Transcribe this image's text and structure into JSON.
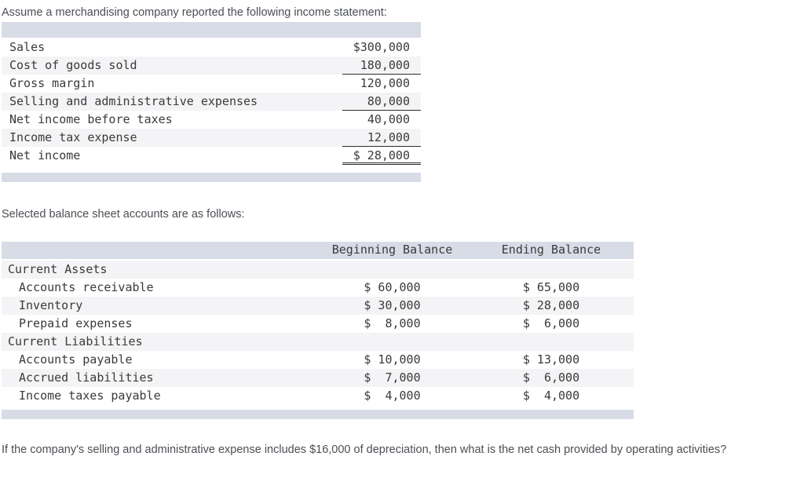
{
  "intro_text": "Assume a merchandising company reported the following income statement:",
  "balance_intro_text": "Selected balance sheet accounts are as follows:",
  "question_text": "If the company's selling and administrative expense includes $16,000 of depreciation, then what is the net cash provided by operating activities?",
  "income_statement": {
    "rows": [
      {
        "label": "Sales",
        "amount": "$300,000",
        "underline": "none"
      },
      {
        "label": "Cost of goods sold",
        "amount": "180,000",
        "underline": "single"
      },
      {
        "label": "Gross margin",
        "amount": "120,000",
        "underline": "none"
      },
      {
        "label": "Selling and administrative expenses",
        "amount": "80,000",
        "underline": "single"
      },
      {
        "label": "Net income before taxes",
        "amount": "40,000",
        "underline": "none"
      },
      {
        "label": "Income tax expense",
        "amount": "12,000",
        "underline": "single"
      },
      {
        "label": "Net income",
        "amount": "$ 28,000",
        "underline": "double"
      }
    ]
  },
  "balance_sheet": {
    "columns": [
      "Beginning Balance",
      "Ending Balance"
    ],
    "rows": [
      {
        "label": "Current Assets",
        "type": "section",
        "beginning": "",
        "ending": ""
      },
      {
        "label": "Accounts receivable",
        "type": "item",
        "beginning": "$ 60,000",
        "ending": "$ 65,000"
      },
      {
        "label": "Inventory",
        "type": "item",
        "beginning": "$ 30,000",
        "ending": "$ 28,000"
      },
      {
        "label": "Prepaid expenses",
        "type": "item",
        "beginning": "$  8,000",
        "ending": "$  6,000"
      },
      {
        "label": "Current Liabilities",
        "type": "section",
        "beginning": "",
        "ending": ""
      },
      {
        "label": "Accounts payable",
        "type": "item",
        "beginning": "$ 10,000",
        "ending": "$ 13,000"
      },
      {
        "label": "Accrued liabilities",
        "type": "item",
        "beginning": "$  7,000",
        "ending": "$  6,000"
      },
      {
        "label": "Income taxes payable",
        "type": "item",
        "beginning": "$  4,000",
        "ending": "$  4,000"
      }
    ]
  },
  "colors": {
    "header_band": "#d8dce6",
    "alt_row": "#f4f4f6",
    "mono_text": "#3a3a3a",
    "sans_text": "#4b4e54"
  }
}
